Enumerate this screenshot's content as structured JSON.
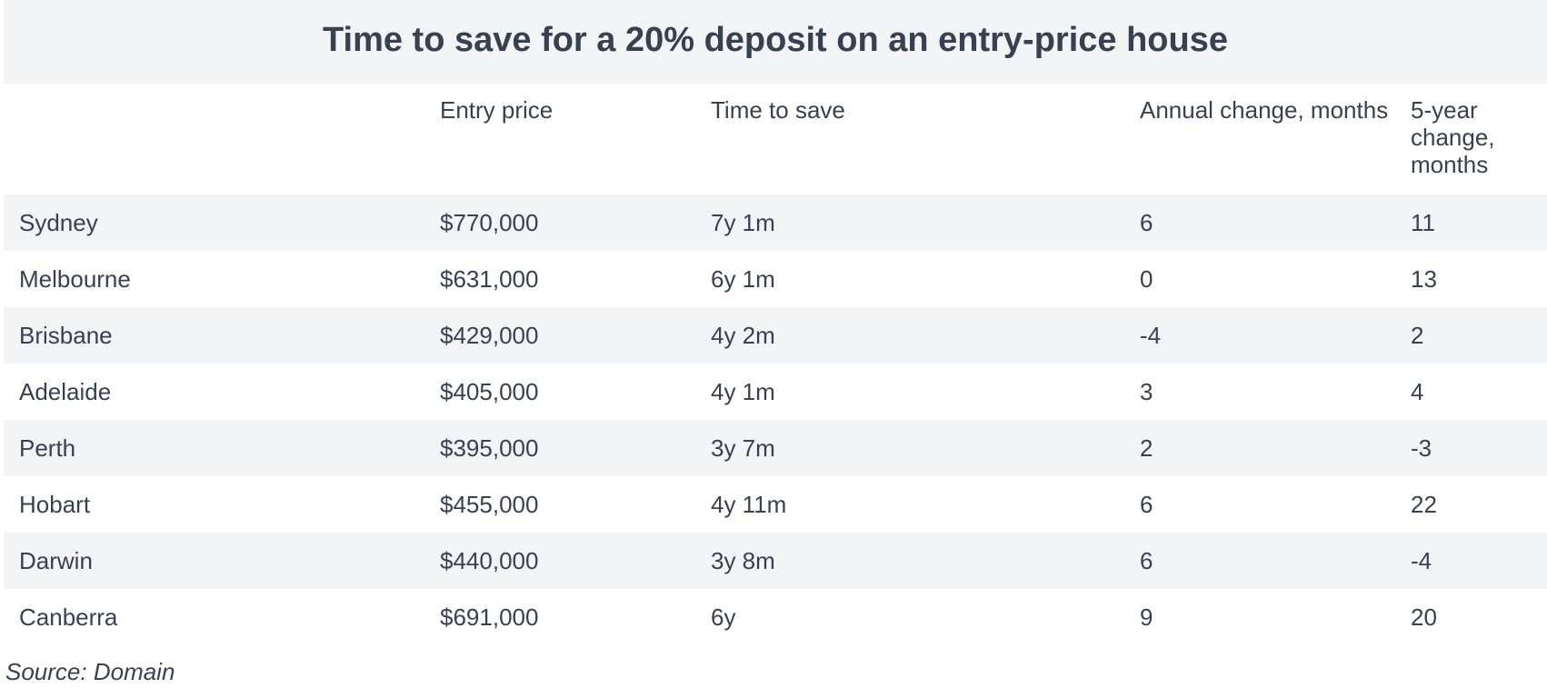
{
  "chart_data": {
    "type": "table",
    "title": "Time to save for a 20% deposit on an entry-price house",
    "columns": [
      "",
      "Entry price",
      "Time to save",
      "Annual change, months",
      "5-year change, months"
    ],
    "rows": [
      {
        "city": "Sydney",
        "entry_price": "$770,000",
        "time_to_save": "7y 1m",
        "annual_change": "6",
        "five_year_change": "11"
      },
      {
        "city": "Melbourne",
        "entry_price": "$631,000",
        "time_to_save": "6y 1m",
        "annual_change": "0",
        "five_year_change": "13"
      },
      {
        "city": "Brisbane",
        "entry_price": "$429,000",
        "time_to_save": "4y 2m",
        "annual_change": "-4",
        "five_year_change": "2"
      },
      {
        "city": "Adelaide",
        "entry_price": "$405,000",
        "time_to_save": "4y 1m",
        "annual_change": "3",
        "five_year_change": "4"
      },
      {
        "city": "Perth",
        "entry_price": "$395,000",
        "time_to_save": "3y 7m",
        "annual_change": "2",
        "five_year_change": "-3"
      },
      {
        "city": "Hobart",
        "entry_price": "$455,000",
        "time_to_save": "4y 11m",
        "annual_change": "6",
        "five_year_change": "22"
      },
      {
        "city": "Darwin",
        "entry_price": "$440,000",
        "time_to_save": "3y 8m",
        "annual_change": "6",
        "five_year_change": "-4"
      },
      {
        "city": "Canberra",
        "entry_price": "$691,000",
        "time_to_save": "6y",
        "annual_change": "9",
        "five_year_change": "20"
      }
    ],
    "source": "Source: Domain"
  },
  "colors": {
    "text": "#374151",
    "band": "#f3f4f6",
    "background": "#ffffff"
  }
}
